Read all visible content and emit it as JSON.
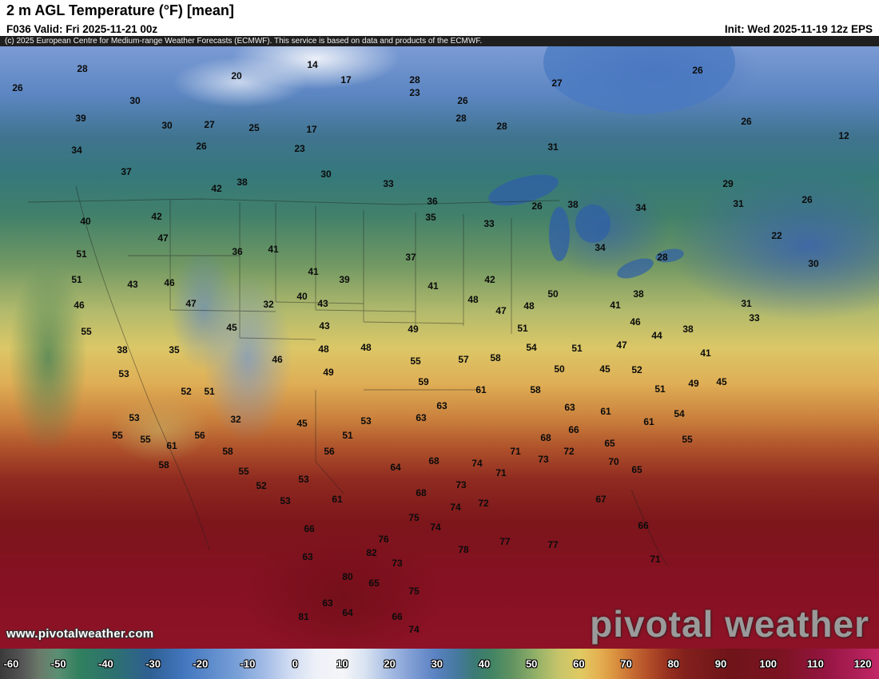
{
  "header": {
    "title": "2 m AGL Temperature (°F) [mean]",
    "valid": "F036 Valid: Fri 2025-11-21 00z",
    "init": "Init: Wed 2025-11-19 12z EPS"
  },
  "copyright": "(c) 2025 European Centre for Medium-range Weather Forecasts (ECMWF). This service is based on data and products of the ECMWF.",
  "watermarks": {
    "url": "www.pivotalweather.com",
    "brand": "pivotal weather"
  },
  "colorbar": {
    "ticks": [
      -60,
      -50,
      -40,
      -30,
      -20,
      -10,
      0,
      10,
      20,
      30,
      40,
      50,
      60,
      70,
      80,
      90,
      100,
      110,
      120
    ],
    "gradient": [
      "#3a3a3a 0%",
      "#555555 2.5%",
      "#6a7a6a 4.5%",
      "#5c8f73 6.5%",
      "#31805f 9%",
      "#2d7170 13%",
      "#2e5f92 17%",
      "#4377bf 21%",
      "#79a0d8 27%",
      "#a9c0e8 30.5%",
      "#d0dcf2 33%",
      "#eef1f8 36%",
      "#f4f5f8 39%",
      "#d9e3f1 41.5%",
      "#abc0e4 44%",
      "#7d9bd3 47%",
      "#5b82c2 49.5%",
      "#45799e 52%",
      "#3b7a74 54%",
      "#428463 56%",
      "#659562 58.5%",
      "#93b168 61%",
      "#c6c46a 63.5%",
      "#e0ca62 66%",
      "#e5b252 68%",
      "#da913f 70%",
      "#c66a32 72%",
      "#b04b28 74%",
      "#97301f 76%",
      "#82201c 78%",
      "#6f1419 83%",
      "#7c1322 89%",
      "#951541 94%",
      "#c22767 100%"
    ]
  },
  "map": {
    "units": "°F",
    "labels": [
      [
        28,
        103,
        86
      ],
      [
        20,
        296,
        95
      ],
      [
        14,
        391,
        81
      ],
      [
        17,
        433,
        100
      ],
      [
        28,
        519,
        100
      ],
      [
        27,
        697,
        104
      ],
      [
        26,
        873,
        88
      ],
      [
        26,
        22,
        110
      ],
      [
        30,
        169,
        126
      ],
      [
        23,
        519,
        116
      ],
      [
        26,
        579,
        126
      ],
      [
        39,
        101,
        148
      ],
      [
        30,
        209,
        157
      ],
      [
        27,
        262,
        156
      ],
      [
        25,
        318,
        160
      ],
      [
        17,
        390,
        162
      ],
      [
        28,
        577,
        148
      ],
      [
        28,
        628,
        158
      ],
      [
        26,
        934,
        152
      ],
      [
        12,
        1056,
        170
      ],
      [
        34,
        96,
        188
      ],
      [
        26,
        252,
        183
      ],
      [
        23,
        375,
        186
      ],
      [
        31,
        692,
        184
      ],
      [
        37,
        158,
        215
      ],
      [
        30,
        408,
        218
      ],
      [
        42,
        271,
        236
      ],
      [
        38,
        303,
        228
      ],
      [
        33,
        486,
        230
      ],
      [
        29,
        911,
        230
      ],
      [
        40,
        107,
        277
      ],
      [
        42,
        196,
        271
      ],
      [
        36,
        541,
        252
      ],
      [
        26,
        672,
        258
      ],
      [
        38,
        717,
        256
      ],
      [
        34,
        802,
        260
      ],
      [
        31,
        924,
        255
      ],
      [
        26,
        1010,
        250
      ],
      [
        35,
        539,
        272
      ],
      [
        33,
        612,
        280
      ],
      [
        22,
        972,
        295
      ],
      [
        51,
        102,
        318
      ],
      [
        47,
        204,
        298
      ],
      [
        36,
        297,
        315
      ],
      [
        41,
        342,
        312
      ],
      [
        37,
        514,
        322
      ],
      [
        34,
        751,
        310
      ],
      [
        28,
        829,
        322
      ],
      [
        30,
        1018,
        330
      ],
      [
        51,
        96,
        350
      ],
      [
        43,
        166,
        356
      ],
      [
        46,
        212,
        354
      ],
      [
        41,
        392,
        340
      ],
      [
        39,
        431,
        350
      ],
      [
        41,
        542,
        358
      ],
      [
        42,
        613,
        350
      ],
      [
        50,
        692,
        368
      ],
      [
        38,
        799,
        368
      ],
      [
        46,
        99,
        382
      ],
      [
        47,
        239,
        380
      ],
      [
        40,
        378,
        371
      ],
      [
        32,
        336,
        381
      ],
      [
        43,
        404,
        380
      ],
      [
        48,
        592,
        375
      ],
      [
        47,
        627,
        389
      ],
      [
        48,
        662,
        383
      ],
      [
        41,
        770,
        382
      ],
      [
        44,
        822,
        420
      ],
      [
        31,
        934,
        380
      ],
      [
        33,
        944,
        398
      ],
      [
        46,
        795,
        403
      ],
      [
        38,
        861,
        412
      ],
      [
        55,
        108,
        415
      ],
      [
        45,
        290,
        410
      ],
      [
        43,
        406,
        408
      ],
      [
        49,
        517,
        412
      ],
      [
        51,
        654,
        411
      ],
      [
        38,
        153,
        438
      ],
      [
        35,
        218,
        438
      ],
      [
        46,
        347,
        450
      ],
      [
        48,
        405,
        437
      ],
      [
        48,
        458,
        435
      ],
      [
        54,
        665,
        435
      ],
      [
        51,
        722,
        436
      ],
      [
        47,
        778,
        432
      ],
      [
        41,
        883,
        442
      ],
      [
        53,
        155,
        468
      ],
      [
        49,
        411,
        466
      ],
      [
        55,
        520,
        452
      ],
      [
        57,
        580,
        450
      ],
      [
        58,
        620,
        448
      ],
      [
        50,
        700,
        462
      ],
      [
        45,
        757,
        462
      ],
      [
        52,
        797,
        463
      ],
      [
        49,
        868,
        480
      ],
      [
        45,
        903,
        478
      ],
      [
        52,
        233,
        490
      ],
      [
        51,
        262,
        490
      ],
      [
        59,
        530,
        478
      ],
      [
        61,
        602,
        488
      ],
      [
        58,
        670,
        488
      ],
      [
        51,
        826,
        487
      ],
      [
        53,
        168,
        523
      ],
      [
        32,
        295,
        525
      ],
      [
        63,
        553,
        508
      ],
      [
        63,
        713,
        510
      ],
      [
        61,
        758,
        515
      ],
      [
        54,
        850,
        518
      ],
      [
        55,
        147,
        545
      ],
      [
        45,
        378,
        530
      ],
      [
        53,
        458,
        527
      ],
      [
        63,
        527,
        523
      ],
      [
        66,
        718,
        538
      ],
      [
        61,
        812,
        528
      ],
      [
        55,
        182,
        550
      ],
      [
        56,
        250,
        545
      ],
      [
        51,
        435,
        545
      ],
      [
        68,
        683,
        548
      ],
      [
        65,
        763,
        555
      ],
      [
        55,
        860,
        550
      ],
      [
        61,
        215,
        558
      ],
      [
        58,
        285,
        565
      ],
      [
        56,
        412,
        565
      ],
      [
        72,
        712,
        565
      ],
      [
        64,
        495,
        585
      ],
      [
        68,
        543,
        577
      ],
      [
        71,
        645,
        565
      ],
      [
        73,
        680,
        575
      ],
      [
        70,
        768,
        578
      ],
      [
        58,
        205,
        582
      ],
      [
        55,
        305,
        590
      ],
      [
        74,
        597,
        580
      ],
      [
        71,
        627,
        592
      ],
      [
        65,
        797,
        588
      ],
      [
        52,
        327,
        608
      ],
      [
        53,
        380,
        600
      ],
      [
        53,
        357,
        627
      ],
      [
        61,
        422,
        625
      ],
      [
        68,
        527,
        617
      ],
      [
        73,
        577,
        607
      ],
      [
        74,
        570,
        635
      ],
      [
        72,
        605,
        630
      ],
      [
        67,
        752,
        625
      ],
      [
        66,
        387,
        662
      ],
      [
        75,
        518,
        648
      ],
      [
        74,
        545,
        660
      ],
      [
        66,
        805,
        658
      ],
      [
        76,
        480,
        675
      ],
      [
        78,
        580,
        688
      ],
      [
        77,
        632,
        678
      ],
      [
        77,
        692,
        682
      ],
      [
        63,
        385,
        697
      ],
      [
        82,
        465,
        692
      ],
      [
        73,
        497,
        705
      ],
      [
        71,
        820,
        700
      ],
      [
        80,
        435,
        722
      ],
      [
        65,
        468,
        730
      ],
      [
        75,
        518,
        740
      ],
      [
        63,
        410,
        755
      ],
      [
        64,
        435,
        767
      ],
      [
        81,
        380,
        772
      ],
      [
        66,
        497,
        772
      ],
      [
        74,
        518,
        788
      ]
    ]
  }
}
